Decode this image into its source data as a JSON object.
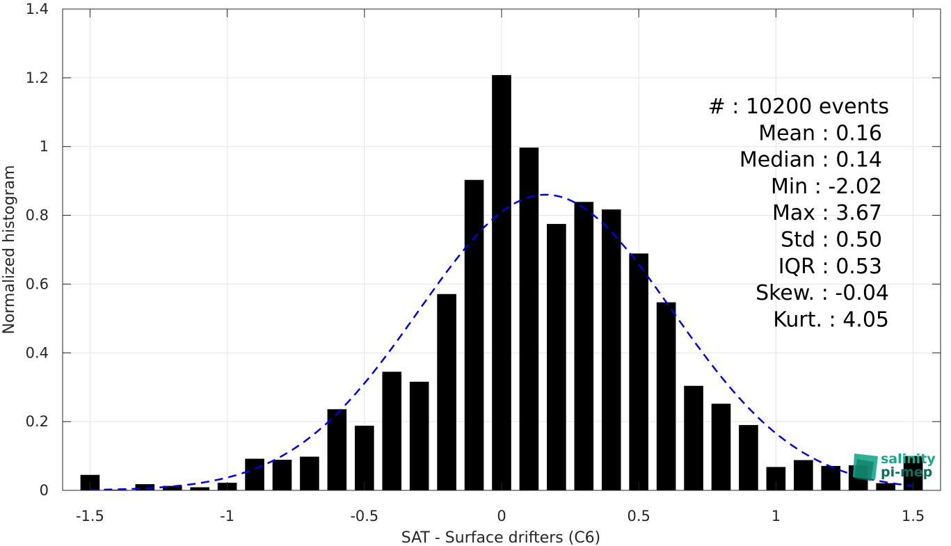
{
  "chart_data": {
    "type": "bar",
    "xlabel": "SAT - Surface drifters (C6)",
    "ylabel": "Normalized histogram",
    "xlim": [
      -1.6,
      1.6
    ],
    "ylim": [
      0,
      1.4
    ],
    "grid": true,
    "x_ticks": [
      -1.5,
      -1,
      -0.5,
      0,
      0.5,
      1,
      1.5
    ],
    "x_tick_labels": [
      "-1.5",
      "-1",
      "-0.5",
      "0",
      "0.5",
      "1",
      "1.5"
    ],
    "y_ticks": [
      0,
      0.2,
      0.4,
      0.6,
      0.8,
      1,
      1.2,
      1.4
    ],
    "y_tick_labels": [
      "0",
      "0.2",
      "0.4",
      "0.6",
      "0.8",
      "1",
      "1.2",
      "1.4"
    ],
    "bar_width": 0.07,
    "x": [
      -1.5,
      -1.4,
      -1.3,
      -1.2,
      -1.1,
      -1.0,
      -0.9,
      -0.8,
      -0.7,
      -0.6,
      -0.5,
      -0.4,
      -0.3,
      -0.2,
      -0.1,
      0.0,
      0.1,
      0.2,
      0.3,
      0.4,
      0.5,
      0.6,
      0.7,
      0.8,
      0.9,
      1.0,
      1.1,
      1.2,
      1.3,
      1.4,
      1.5
    ],
    "values": [
      0.045,
      0.002,
      0.018,
      0.013,
      0.009,
      0.022,
      0.092,
      0.089,
      0.098,
      0.236,
      0.188,
      0.345,
      0.316,
      0.571,
      0.903,
      1.208,
      0.997,
      0.775,
      0.839,
      0.817,
      0.689,
      0.547,
      0.304,
      0.252,
      0.19,
      0.068,
      0.088,
      0.071,
      0.073,
      0.021,
      0.1
    ],
    "bar_color": "#000000",
    "fit_curve": {
      "style": "dashed",
      "color": "#0000dd",
      "mean": 0.16,
      "std": 0.463,
      "peak": 0.86,
      "x_range": [
        -1.5,
        1.5
      ]
    },
    "annotations": [
      {
        "label": "#  : 10200 events"
      },
      {
        "label": "Mean : 0.16"
      },
      {
        "label": "Median : 0.14"
      },
      {
        "label": "Min : -2.02"
      },
      {
        "label": "Max : 3.67"
      },
      {
        "label": "Std : 0.50"
      },
      {
        "label": "IQR : 0.53"
      },
      {
        "label": "Skew. : -0.04"
      },
      {
        "label": "Kurt. : 4.05"
      }
    ]
  },
  "logo": {
    "line1": "salinity",
    "line2": "pi-mep",
    "colors": {
      "primary": "#16a88a",
      "secondary": "#0d6e5c"
    }
  }
}
